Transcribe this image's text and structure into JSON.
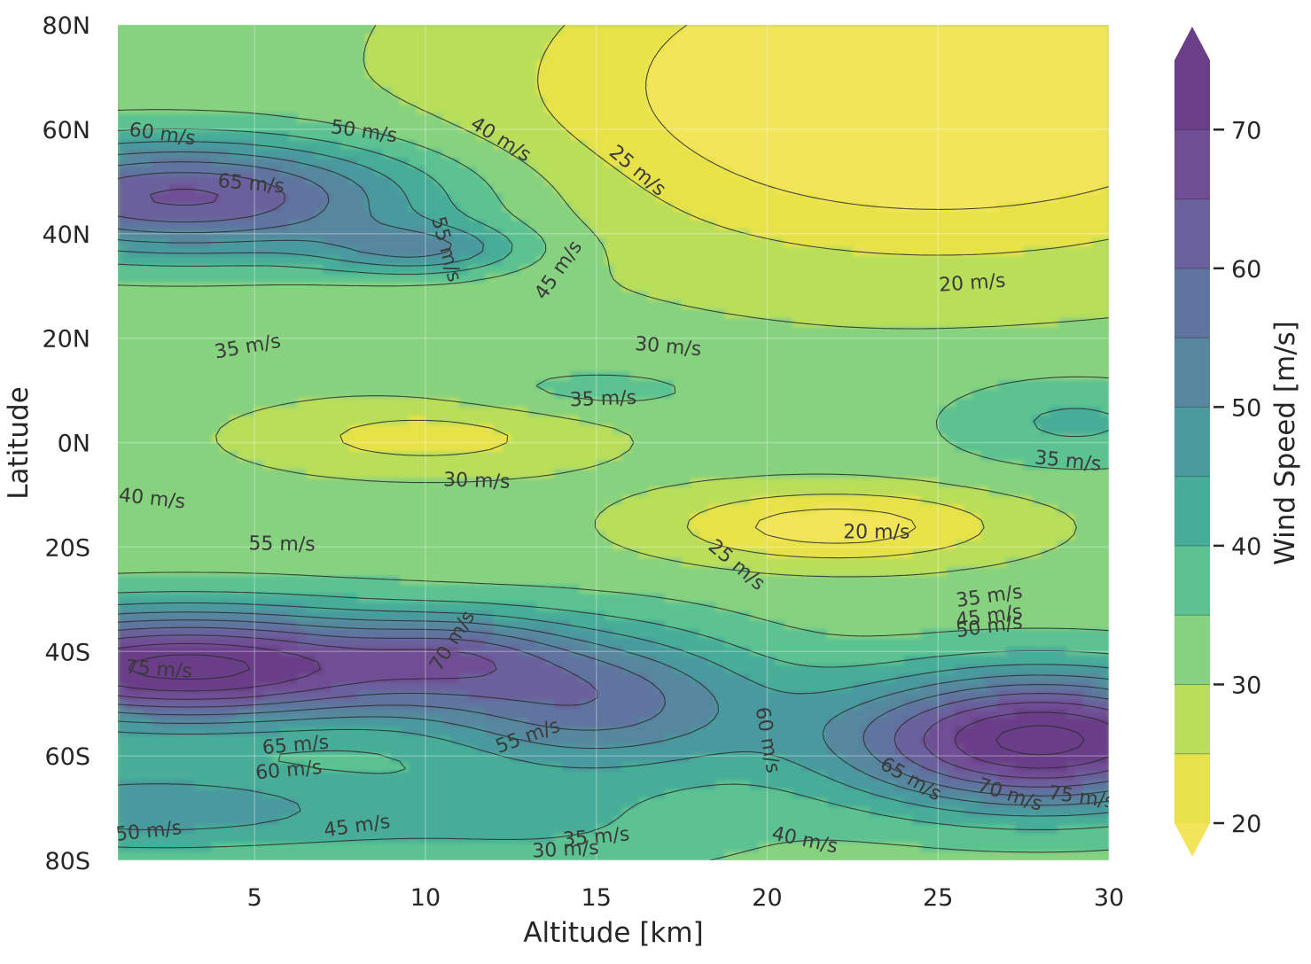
{
  "chart_data": {
    "type": "contour",
    "title": "",
    "xlabel": "Altitude [km]",
    "ylabel": "Latitude",
    "colorbar_label": "Wind Speed [m/s]",
    "xlim": [
      1,
      30
    ],
    "ylim": [
      -80,
      80
    ],
    "x_ticks": [
      {
        "value": 5,
        "label": "5"
      },
      {
        "value": 10,
        "label": "10"
      },
      {
        "value": 15,
        "label": "15"
      },
      {
        "value": 20,
        "label": "20"
      },
      {
        "value": 25,
        "label": "25"
      },
      {
        "value": 30,
        "label": "30"
      }
    ],
    "y_ticks": [
      {
        "value": 80,
        "label": "80N"
      },
      {
        "value": 60,
        "label": "60N"
      },
      {
        "value": 40,
        "label": "40N"
      },
      {
        "value": 20,
        "label": "20N"
      },
      {
        "value": 0,
        "label": "0N"
      },
      {
        "value": -20,
        "label": "20S"
      },
      {
        "value": -40,
        "label": "40S"
      },
      {
        "value": -60,
        "label": "60S"
      },
      {
        "value": -80,
        "label": "80S"
      }
    ],
    "colorbar_ticks": [
      {
        "value": 20,
        "label": "20"
      },
      {
        "value": 30,
        "label": "30"
      },
      {
        "value": 40,
        "label": "40"
      },
      {
        "value": 50,
        "label": "50"
      },
      {
        "value": 60,
        "label": "60"
      },
      {
        "value": 70,
        "label": "70"
      }
    ],
    "levels": [
      20,
      25,
      30,
      35,
      40,
      45,
      50,
      55,
      60,
      65,
      70,
      75
    ],
    "colors": [
      "#e8e24a",
      "#b8de5a",
      "#86d27f",
      "#5cc291",
      "#46ad98",
      "#4a9a9e",
      "#56879e",
      "#5f749f",
      "#6b619c",
      "#6f4e94",
      "#6a3e88"
    ],
    "under_color": "#f2e55a",
    "over_color": "#6a3e88",
    "colormap": "viridis_r",
    "grid": true,
    "contour_labels": [
      {
        "text": "60 m/s",
        "x": 2.3,
        "y": 59,
        "rot": 8
      },
      {
        "text": "65 m/s",
        "x": 4.9,
        "y": 49.5,
        "rot": 5
      },
      {
        "text": "50 m/s",
        "x": 8.2,
        "y": 59.5,
        "rot": 8
      },
      {
        "text": "40 m/s",
        "x": 12.2,
        "y": 58,
        "rot": 32
      },
      {
        "text": "25 m/s",
        "x": 16.2,
        "y": 52,
        "rot": 40
      },
      {
        "text": "55 m/s",
        "x": 10.6,
        "y": 37,
        "rot": 75
      },
      {
        "text": "45 m/s",
        "x": 13.9,
        "y": 33,
        "rot": -55
      },
      {
        "text": "20 m/s",
        "x": 26.0,
        "y": 30.5,
        "rot": -4
      },
      {
        "text": "35 m/s",
        "x": 4.8,
        "y": 18.3,
        "rot": -10
      },
      {
        "text": "30 m/s",
        "x": 17.1,
        "y": 18.3,
        "rot": 5
      },
      {
        "text": "35 m/s",
        "x": 15.2,
        "y": 8.3,
        "rot": -2
      },
      {
        "text": "35 m/s",
        "x": 28.8,
        "y": -3.6,
        "rot": 6
      },
      {
        "text": "40 m/s",
        "x": 2.0,
        "y": -10.8,
        "rot": 6
      },
      {
        "text": "30 m/s",
        "x": 11.5,
        "y": -7.4,
        "rot": 2
      },
      {
        "text": "55 m/s",
        "x": 5.8,
        "y": -19.5,
        "rot": 1
      },
      {
        "text": "20 m/s",
        "x": 23.2,
        "y": -17.2,
        "rot": 0
      },
      {
        "text": "25 m/s",
        "x": 19.1,
        "y": -23.5,
        "rot": 40
      },
      {
        "text": "35 m/s",
        "x": 26.5,
        "y": -29.5,
        "rot": -8
      },
      {
        "text": "45 m/s",
        "x": 26.5,
        "y": -33.3,
        "rot": -8
      },
      {
        "text": "50 m/s",
        "x": 26.5,
        "y": -35.3,
        "rot": -8
      },
      {
        "text": "70 m/s",
        "x": 10.8,
        "y": -38,
        "rot": -58
      },
      {
        "text": "75 m/s",
        "x": 2.2,
        "y": -43.5,
        "rot": 4
      },
      {
        "text": "65 m/s",
        "x": 6.2,
        "y": -58,
        "rot": -5
      },
      {
        "text": "60 m/s",
        "x": 6.0,
        "y": -62.8,
        "rot": -5
      },
      {
        "text": "55 m/s",
        "x": 13.0,
        "y": -56.3,
        "rot": -20
      },
      {
        "text": "60 m/s",
        "x": 20.0,
        "y": -57,
        "rot": 80
      },
      {
        "text": "65 m/s",
        "x": 24.2,
        "y": -64.5,
        "rot": 30
      },
      {
        "text": "70 m/s",
        "x": 27.1,
        "y": -67.5,
        "rot": 18
      },
      {
        "text": "75 m/s",
        "x": 29.2,
        "y": -68,
        "rot": 8
      },
      {
        "text": "50 m/s",
        "x": 1.9,
        "y": -74.5,
        "rot": -6
      },
      {
        "text": "45 m/s",
        "x": 8.0,
        "y": -73.5,
        "rot": -8
      },
      {
        "text": "35 m/s",
        "x": 15.0,
        "y": -75.6,
        "rot": -5
      },
      {
        "text": "30 m/s",
        "x": 14.1,
        "y": -78,
        "rot": -3
      },
      {
        "text": "40 m/s",
        "x": 21.1,
        "y": -76.2,
        "rot": 12
      }
    ]
  }
}
